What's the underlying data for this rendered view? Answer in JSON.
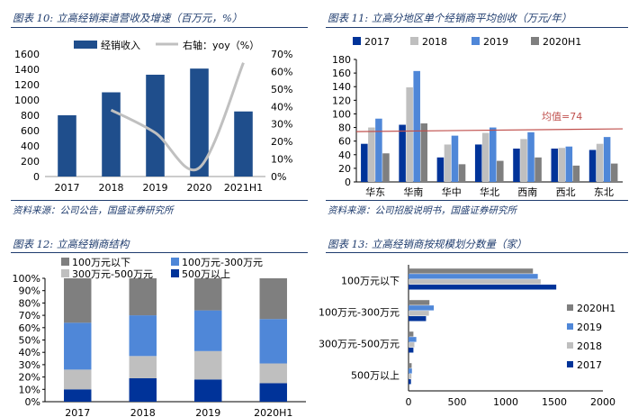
{
  "colors": {
    "navy": "#1f4e8c",
    "deep": "#003399",
    "gray": "#7f7f7f",
    "lightgray": "#bfbfbf",
    "medblue": "#4f87d8",
    "line": "#c0c0c0",
    "avgline": "#c0504d",
    "title": "#1f3c6e"
  },
  "chart_data": [
    {
      "type": "bar",
      "title": "图表 10:  立高经销渠道营收及增速（百万元，%）",
      "source": "资料来源：公司公告，国盛证券研究所",
      "categories": [
        "2017",
        "2018",
        "2019",
        "2020",
        "2021H1"
      ],
      "series": [
        {
          "name": "经销收入",
          "type": "bar",
          "axis": "left",
          "values": [
            800,
            1100,
            1330,
            1410,
            850
          ]
        },
        {
          "name": "右轴：yoy（%）",
          "type": "line",
          "axis": "right",
          "values": [
            null,
            38,
            25,
            5,
            65
          ]
        }
      ],
      "ylim": [
        0,
        1600
      ],
      "yticks": [
        "0",
        "200",
        "400",
        "600",
        "800",
        "1000",
        "1200",
        "1400",
        "1600"
      ],
      "y2lim": [
        0,
        70
      ],
      "y2ticks": [
        "0%",
        "10%",
        "20%",
        "30%",
        "40%",
        "50%",
        "60%",
        "70%"
      ],
      "legend": "top"
    },
    {
      "type": "bar",
      "title": "图表 11:  立高分地区单个经销商平均创收（万元/年）",
      "source": "资料来源：公司招股说明书，国盛证券研究所",
      "categories": [
        "华东",
        "华南",
        "华中",
        "华北",
        "西南",
        "西北",
        "东北"
      ],
      "series": [
        {
          "name": "2017",
          "values": [
            56,
            84,
            36,
            55,
            49,
            49,
            47
          ]
        },
        {
          "name": "2018",
          "values": [
            80,
            139,
            55,
            72,
            63,
            50,
            56
          ]
        },
        {
          "name": "2019",
          "values": [
            93,
            163,
            68,
            80,
            73,
            52,
            66
          ]
        },
        {
          "name": "2020H1",
          "values": [
            42,
            86,
            26,
            31,
            36,
            24,
            27
          ]
        }
      ],
      "reference_line": {
        "label": "均值=74",
        "start": 74,
        "end": 78
      },
      "ylim": [
        0,
        180
      ],
      "yticks": [
        "0",
        "20",
        "40",
        "60",
        "80",
        "100",
        "120",
        "140",
        "160",
        "180"
      ],
      "legend": "top"
    },
    {
      "type": "bar",
      "stacked": true,
      "title": "图表 12:  立高经销商结构",
      "categories": [
        "2017",
        "2018",
        "2019",
        "2020H1"
      ],
      "series": [
        {
          "name": "500万以上",
          "values": [
            10,
            19,
            18,
            15
          ]
        },
        {
          "name": "300万元-500万元",
          "values": [
            16,
            18,
            23,
            16
          ]
        },
        {
          "name": "100万元-300万元",
          "values": [
            38,
            33,
            33,
            36
          ]
        },
        {
          "name": "100万元以下",
          "values": [
            36,
            30,
            26,
            33
          ]
        }
      ],
      "legend_order": [
        "100万元以下",
        "100万元-300万元",
        "300万元-500万元",
        "500万以上"
      ],
      "ylim": [
        0,
        100
      ],
      "yticks": [
        "0%",
        "10%",
        "20%",
        "30%",
        "40%",
        "50%",
        "60%",
        "70%",
        "80%",
        "90%",
        "100%"
      ],
      "legend": "top"
    },
    {
      "type": "bar",
      "orientation": "horizontal",
      "title": "图表 13:  立高经销商按规模划分数量（家）",
      "categories": [
        "100万元以下",
        "100万元-300万元",
        "300万元-500万元",
        "500万以上"
      ],
      "series": [
        {
          "name": "2017",
          "values": [
            1520,
            180,
            50,
            25
          ]
        },
        {
          "name": "2018",
          "values": [
            1360,
            210,
            60,
            30
          ]
        },
        {
          "name": "2019",
          "values": [
            1330,
            260,
            80,
            35
          ]
        },
        {
          "name": "2020H1",
          "values": [
            1280,
            215,
            50,
            32
          ]
        }
      ],
      "legend_order": [
        "2020H1",
        "2019",
        "2018",
        "2017"
      ],
      "xlim": [
        0,
        2000
      ],
      "xticks": [
        "0",
        "500",
        "1000",
        "1500",
        "2000"
      ],
      "legend": "right"
    }
  ]
}
